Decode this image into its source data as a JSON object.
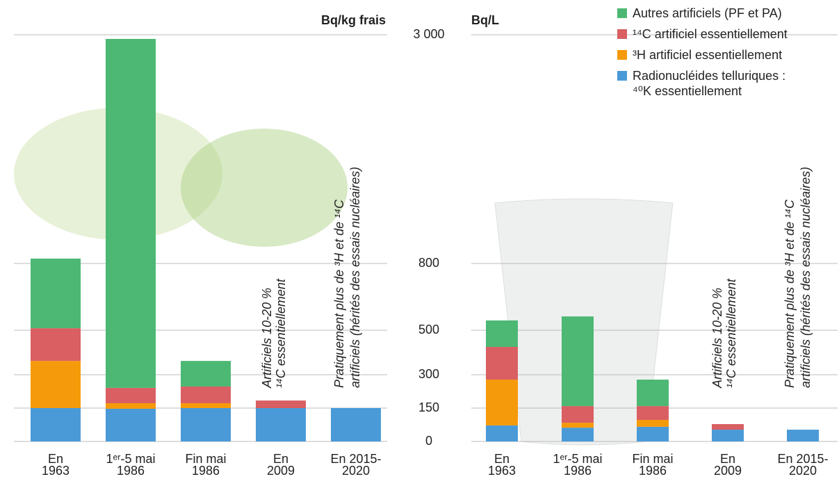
{
  "chart_data": [
    {
      "type": "bar",
      "stacked": true,
      "y_label": "Bq/kg frais",
      "categories": [
        [
          "En",
          "1963"
        ],
        [
          "1ᵉʳ-5 mai",
          "1986"
        ],
        [
          "Fin mai",
          "1986"
        ],
        [
          "En",
          "2009"
        ],
        [
          "En 2015-",
          "2020"
        ]
      ],
      "series": [
        {
          "name": "Radionucléides telluriques : ⁴⁰K essentiellement",
          "color": "#4a9ad8",
          "values": [
            150,
            147,
            150,
            150,
            150
          ]
        },
        {
          "name": "³H artificiel essentiellement",
          "color": "#f59a0a",
          "values": [
            212,
            25,
            22,
            null,
            null
          ]
        },
        {
          "name": "¹⁴C artificiel essentiellement",
          "color": "#d95f63",
          "values": [
            147,
            69,
            75,
            34,
            null
          ]
        },
        {
          "name": "Autres artificiels (PF et PA)",
          "color": "#4cb874",
          "values": [
            338,
            2719,
            115,
            null,
            null
          ]
        }
      ],
      "ylim": [
        0,
        3000
      ],
      "yticks": [
        0,
        150,
        300,
        500,
        800,
        {
          "value": 3000,
          "label": "3 000"
        }
      ],
      "grid": true,
      "annotations": [
        [
          "Artificiels 10-20 %",
          "¹⁴C essentiellement"
        ],
        [
          "Pratiquement plus de ³H et de ¹⁴C",
          "artificiels (hérités des essais nucléaires)"
        ]
      ]
    },
    {
      "type": "bar",
      "stacked": true,
      "y_label": "Bq/L",
      "categories": [
        [
          "En",
          "1963"
        ],
        [
          "1ᵉʳ-5 mai",
          "1986"
        ],
        [
          "Fin mai",
          "1986"
        ],
        [
          "En",
          "2009"
        ],
        [
          "En 2015-",
          "2020"
        ]
      ],
      "series": [
        {
          "name": "Radionucléides telluriques : ⁴⁰K essentiellement",
          "color": "#4a9ad8",
          "values": [
            72,
            62,
            66,
            53,
            53
          ]
        },
        {
          "name": "³H artificiel essentiellement",
          "color": "#f59a0a",
          "values": [
            206,
            22,
            31,
            null,
            null
          ]
        },
        {
          "name": "¹⁴C artificiel essentiellement",
          "color": "#d95f63",
          "values": [
            147,
            75,
            62,
            25,
            null
          ]
        },
        {
          "name": "Autres artificiels (PF et PA)",
          "color": "#4cb874",
          "values": [
            119,
            403,
            119,
            null,
            null
          ]
        }
      ],
      "ylim": [
        0,
        3000
      ],
      "yticks": [
        0,
        150,
        300,
        500,
        800,
        {
          "value": 3000,
          "label": "3 000"
        }
      ],
      "grid": true,
      "annotations": [
        [
          "Artificiels 10-20 %",
          "¹⁴C essentiellement"
        ],
        [
          "Pratiquement plus de ³H et de ¹⁴C",
          "artificiels (hérités des essais nucléaires)"
        ]
      ]
    }
  ]
}
